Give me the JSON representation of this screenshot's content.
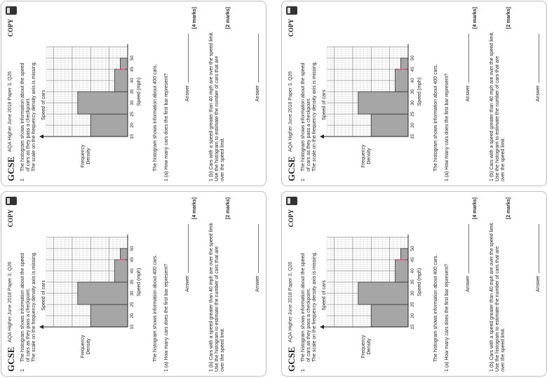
{
  "worksheet": {
    "subject": "GCSE",
    "source": "AQA Higher June 2018 Paper 3, Q26",
    "stamp": "COPY",
    "question_number": "1",
    "intro_lines": [
      "The histogram shows information about the speed",
      "of cars as they pass a checkpoint.",
      "The scale on the frequency density axis is missing."
    ],
    "chart_title": "Speed of cars",
    "paragraph": "The histogram shows information about 400 cars.",
    "part_a": "1 (a) How many cars does the first bar represent?",
    "answer_label": "Answer",
    "marks_a": "[4 marks]",
    "part_b_lines": [
      "1 (b) Cars with a speed greater than 40 mph are over the speed limit.",
      "Use the histogram to estimate the number of cars that are",
      "over the speed limit."
    ],
    "marks_b": "[2 marks]"
  },
  "chart_data": {
    "type": "bar",
    "title": "Speed of cars",
    "xlabel": "Speed (mph)",
    "ylabel": "Frequency Density",
    "x_ticks": [
      15,
      20,
      25,
      30,
      35,
      40,
      45,
      50
    ],
    "bars": [
      {
        "from": 15,
        "to": 25,
        "height": 10
      },
      {
        "from": 25,
        "to": 35,
        "height": 13.5
      },
      {
        "from": 35,
        "to": 45,
        "height": 3.5
      },
      {
        "from": 45,
        "to": 50,
        "height": 2
      }
    ],
    "marker": {
      "x": 45,
      "y": 1.6
    },
    "xlim": [
      15,
      55
    ],
    "ylim": [
      0,
      22
    ],
    "grid": true,
    "fill_color": "#a6a6a6",
    "marker_color": "#e0506e"
  },
  "cards": [
    "card-top-right",
    "card-top-left",
    "card-bottom-right",
    "card-bottom-left"
  ]
}
